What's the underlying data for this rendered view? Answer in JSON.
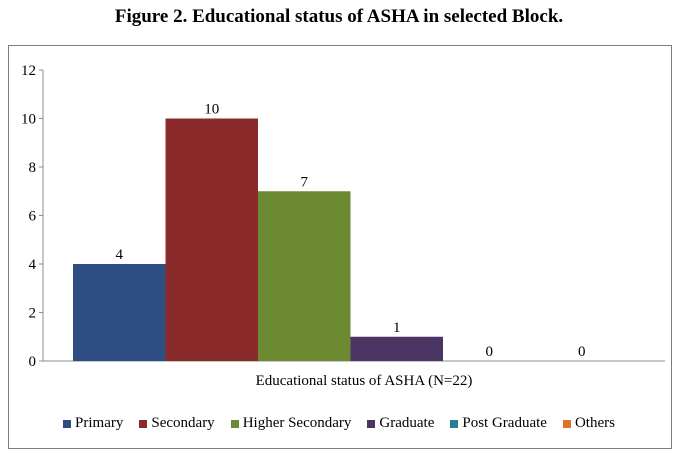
{
  "figure": {
    "title": "Figure 2. Educational status of ASHA in selected Block."
  },
  "chart_data": {
    "type": "bar",
    "categories": [
      "Primary",
      "Secondary",
      "Higher Secondary",
      "Graduate",
      "Post Graduate",
      "Others"
    ],
    "values": [
      4,
      10,
      7,
      1,
      0,
      0
    ],
    "data_labels": [
      "4",
      "10",
      "7",
      "1",
      "0",
      "0"
    ],
    "colors": [
      "#2e4d82",
      "#8b2a2a",
      "#6c8a32",
      "#4b3565",
      "#2d7c96",
      "#dd7326"
    ],
    "title": "",
    "xlabel": "Educational status of ASHA (N=22)",
    "ylabel": "",
    "ylim": [
      0,
      12
    ],
    "yticks": [
      0,
      2,
      4,
      6,
      8,
      10,
      12
    ],
    "ytick_labels": [
      "0",
      "2",
      "4",
      "6",
      "8",
      "10",
      "12"
    ],
    "grid": false,
    "legend_position": "bottom"
  }
}
